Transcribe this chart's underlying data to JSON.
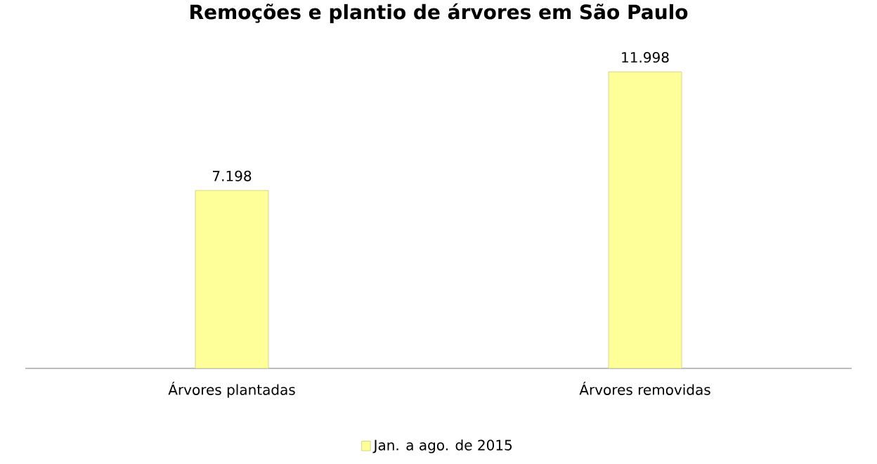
{
  "chart_data": {
    "type": "bar",
    "title": "Remoções e plantio de árvores em São Paulo",
    "categories": [
      "Árvores plantadas",
      "Árvores removidas"
    ],
    "series": [
      {
        "name": "Jan. a ago. de 2015",
        "color": "#ffff99",
        "values": [
          7198,
          11998
        ],
        "value_labels": [
          "7.198",
          "11.998"
        ]
      }
    ],
    "legend": "bottom"
  }
}
